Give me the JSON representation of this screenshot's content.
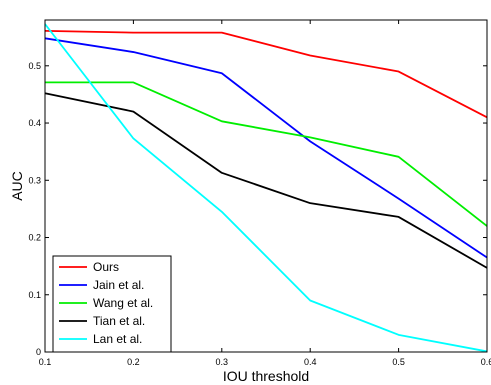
{
  "chart_data": {
    "type": "line",
    "title": "",
    "xlabel": "IOU threshold",
    "ylabel": "AUC",
    "xlim": [
      0.1,
      0.6
    ],
    "ylim": [
      0,
      0.58
    ],
    "x_ticks": [
      0.1,
      0.2,
      0.3,
      0.4,
      0.5,
      0.6
    ],
    "x_tick_labels": [
      "0.1",
      "0.2",
      "0.3",
      "0.4",
      "0.5",
      "0.6"
    ],
    "y_ticks": [
      0,
      0.1,
      0.2,
      0.3,
      0.4,
      0.5
    ],
    "y_tick_labels": [
      "0",
      "0.1",
      "0.2",
      "0.3",
      "0.4",
      "0.5"
    ],
    "grid": false,
    "legend_position": "bottom-left",
    "x": [
      0.1,
      0.2,
      0.3,
      0.4,
      0.5,
      0.6
    ],
    "series": [
      {
        "name": "Ours",
        "color": "#ff0000",
        "values": [
          0.561,
          0.558,
          0.558,
          0.518,
          0.49,
          0.41
        ]
      },
      {
        "name": "Jain et al.",
        "color": "#0000ff",
        "values": [
          0.548,
          0.524,
          0.487,
          0.368,
          0.268,
          0.165
        ]
      },
      {
        "name": "Wang et al.",
        "color": "#00ee00",
        "values": [
          0.471,
          0.471,
          0.403,
          0.375,
          0.341,
          0.22
        ]
      },
      {
        "name": "Tian et al.",
        "color": "#000000",
        "values": [
          0.452,
          0.42,
          0.313,
          0.26,
          0.236,
          0.147
        ]
      },
      {
        "name": "Lan et al.",
        "color": "#00ffff",
        "values": [
          0.573,
          0.373,
          0.245,
          0.09,
          0.03,
          0.001
        ]
      }
    ]
  }
}
